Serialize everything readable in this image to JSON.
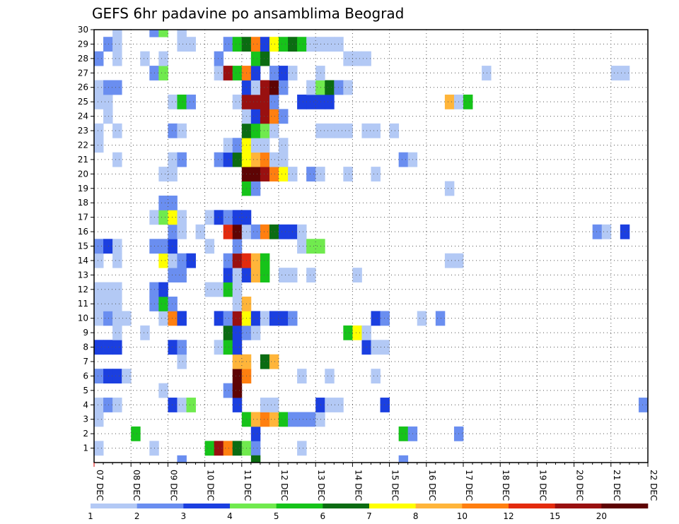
{
  "chart_data": {
    "type": "heatmap",
    "title": "GEFS 6hr padavine po ansamblima Beograd",
    "xlabel": "",
    "ylabel": "",
    "x_tick_labels": [
      "07 DEC",
      "08 DEC",
      "09 DEC",
      "10 DEC",
      "11 DEC",
      "12 DEC",
      "13 DEC",
      "14 DEC",
      "15 DEC",
      "16 DEC",
      "17 DEC",
      "18 DEC",
      "19 DEC",
      "20 DEC",
      "21 DEC",
      "22 DEC"
    ],
    "y_tick_labels": [
      "1",
      "2",
      "3",
      "4",
      "5",
      "6",
      "7",
      "8",
      "9",
      "10",
      "11",
      "12",
      "13",
      "14",
      "15",
      "16",
      "17",
      "18",
      "19",
      "20",
      "21",
      "22",
      "23",
      "24",
      "25",
      "26",
      "27",
      "28",
      "29",
      "30"
    ],
    "xlim": [
      "07 DEC",
      "22 DEC"
    ],
    "ylim": [
      0,
      30
    ],
    "time_steps": 60,
    "grid": "dotted",
    "legend": {
      "placement": "bottom",
      "boundary_labels": [
        "1",
        "2",
        "3",
        "4",
        "5",
        "6",
        "7",
        "8",
        "10",
        "12",
        "15",
        "20"
      ],
      "colors": [
        "#b3c9f5",
        "#6a8ef0",
        "#1b3fe0",
        "#70ea4e",
        "#16c31a",
        "#0b6c12",
        "#ffff00",
        "#ffb53a",
        "#ff7f10",
        "#e32b0e",
        "#991010",
        "#5e0404"
      ]
    },
    "cells": [
      [
        1,
        1,
        1
      ],
      [
        7,
        1,
        1
      ],
      [
        13,
        1,
        5
      ],
      [
        14,
        1,
        11
      ],
      [
        15,
        1,
        9
      ],
      [
        16,
        1,
        6
      ],
      [
        17,
        1,
        4
      ],
      [
        18,
        1,
        2
      ],
      [
        23,
        1,
        1
      ],
      [
        5,
        2,
        5
      ],
      [
        18,
        2,
        3
      ],
      [
        34,
        2,
        5
      ],
      [
        35,
        2,
        2
      ],
      [
        40,
        2,
        2
      ],
      [
        1,
        3,
        1
      ],
      [
        17,
        3,
        5
      ],
      [
        18,
        3,
        8
      ],
      [
        19,
        3,
        9
      ],
      [
        20,
        3,
        8
      ],
      [
        21,
        3,
        5
      ],
      [
        22,
        3,
        2
      ],
      [
        23,
        3,
        2
      ],
      [
        24,
        3,
        2
      ],
      [
        25,
        3,
        1
      ],
      [
        1,
        4,
        1
      ],
      [
        2,
        4,
        2
      ],
      [
        3,
        4,
        1
      ],
      [
        9,
        4,
        3
      ],
      [
        10,
        4,
        1
      ],
      [
        11,
        4,
        4
      ],
      [
        16,
        4,
        3
      ],
      [
        19,
        4,
        1
      ],
      [
        20,
        4,
        1
      ],
      [
        25,
        4,
        3
      ],
      [
        26,
        4,
        1
      ],
      [
        27,
        4,
        1
      ],
      [
        32,
        4,
        3
      ],
      [
        60,
        4,
        2
      ],
      [
        8,
        5,
        1
      ],
      [
        15,
        5,
        2
      ],
      [
        16,
        5,
        12
      ],
      [
        1,
        6,
        2
      ],
      [
        2,
        6,
        3
      ],
      [
        3,
        6,
        3
      ],
      [
        4,
        6,
        1
      ],
      [
        16,
        6,
        12
      ],
      [
        17,
        6,
        9
      ],
      [
        23,
        6,
        1
      ],
      [
        26,
        6,
        1
      ],
      [
        31,
        6,
        1
      ],
      [
        10,
        7,
        1
      ],
      [
        16,
        7,
        8
      ],
      [
        17,
        7,
        8
      ],
      [
        19,
        7,
        6
      ],
      [
        20,
        7,
        8
      ],
      [
        1,
        8,
        3
      ],
      [
        2,
        8,
        3
      ],
      [
        3,
        8,
        3
      ],
      [
        9,
        8,
        3
      ],
      [
        10,
        8,
        2
      ],
      [
        14,
        8,
        1
      ],
      [
        15,
        8,
        5
      ],
      [
        16,
        8,
        3
      ],
      [
        30,
        8,
        3
      ],
      [
        31,
        8,
        1
      ],
      [
        32,
        8,
        1
      ],
      [
        3,
        9,
        1
      ],
      [
        6,
        9,
        1
      ],
      [
        15,
        9,
        6
      ],
      [
        16,
        9,
        3
      ],
      [
        17,
        9,
        2
      ],
      [
        18,
        9,
        1
      ],
      [
        28,
        9,
        5
      ],
      [
        29,
        9,
        7
      ],
      [
        30,
        9,
        1
      ],
      [
        1,
        10,
        1
      ],
      [
        2,
        10,
        2
      ],
      [
        3,
        10,
        1
      ],
      [
        4,
        10,
        1
      ],
      [
        8,
        10,
        1
      ],
      [
        9,
        10,
        9
      ],
      [
        10,
        10,
        3
      ],
      [
        14,
        10,
        3
      ],
      [
        15,
        10,
        2
      ],
      [
        16,
        10,
        11
      ],
      [
        17,
        10,
        7
      ],
      [
        18,
        10,
        3
      ],
      [
        19,
        10,
        1
      ],
      [
        20,
        10,
        3
      ],
      [
        21,
        10,
        3
      ],
      [
        22,
        10,
        2
      ],
      [
        31,
        10,
        3
      ],
      [
        32,
        10,
        2
      ],
      [
        36,
        10,
        1
      ],
      [
        38,
        10,
        2
      ],
      [
        1,
        11,
        1
      ],
      [
        2,
        11,
        1
      ],
      [
        3,
        11,
        1
      ],
      [
        7,
        11,
        2
      ],
      [
        8,
        11,
        5
      ],
      [
        9,
        11,
        2
      ],
      [
        16,
        11,
        1
      ],
      [
        17,
        11,
        8
      ],
      [
        1,
        12,
        1
      ],
      [
        2,
        12,
        1
      ],
      [
        3,
        12,
        1
      ],
      [
        7,
        12,
        2
      ],
      [
        8,
        12,
        3
      ],
      [
        13,
        12,
        1
      ],
      [
        14,
        12,
        1
      ],
      [
        15,
        12,
        5
      ],
      [
        16,
        12,
        1
      ],
      [
        9,
        13,
        2
      ],
      [
        10,
        13,
        2
      ],
      [
        15,
        13,
        3
      ],
      [
        16,
        13,
        1
      ],
      [
        17,
        13,
        3
      ],
      [
        18,
        13,
        8
      ],
      [
        19,
        13,
        5
      ],
      [
        21,
        13,
        1
      ],
      [
        22,
        13,
        1
      ],
      [
        24,
        13,
        1
      ],
      [
        29,
        13,
        1
      ],
      [
        1,
        14,
        1
      ],
      [
        3,
        14,
        1
      ],
      [
        8,
        14,
        7
      ],
      [
        9,
        14,
        1
      ],
      [
        10,
        14,
        2
      ],
      [
        11,
        14,
        3
      ],
      [
        15,
        14,
        2
      ],
      [
        16,
        14,
        11
      ],
      [
        17,
        14,
        10
      ],
      [
        18,
        14,
        8
      ],
      [
        19,
        14,
        5
      ],
      [
        39,
        14,
        1
      ],
      [
        40,
        14,
        1
      ],
      [
        1,
        15,
        2
      ],
      [
        2,
        15,
        3
      ],
      [
        3,
        15,
        1
      ],
      [
        7,
        15,
        2
      ],
      [
        8,
        15,
        2
      ],
      [
        9,
        15,
        3
      ],
      [
        13,
        15,
        1
      ],
      [
        16,
        15,
        2
      ],
      [
        23,
        15,
        1
      ],
      [
        24,
        15,
        4
      ],
      [
        25,
        15,
        4
      ],
      [
        9,
        16,
        2
      ],
      [
        10,
        16,
        1
      ],
      [
        12,
        16,
        1
      ],
      [
        15,
        16,
        10
      ],
      [
        16,
        16,
        12
      ],
      [
        17,
        16,
        1
      ],
      [
        18,
        16,
        2
      ],
      [
        19,
        16,
        9
      ],
      [
        20,
        16,
        6
      ],
      [
        21,
        16,
        3
      ],
      [
        22,
        16,
        3
      ],
      [
        23,
        16,
        1
      ],
      [
        55,
        16,
        2
      ],
      [
        56,
        16,
        1
      ],
      [
        58,
        16,
        3
      ],
      [
        7,
        17,
        1
      ],
      [
        8,
        17,
        4
      ],
      [
        9,
        17,
        7
      ],
      [
        10,
        17,
        1
      ],
      [
        13,
        17,
        1
      ],
      [
        14,
        17,
        3
      ],
      [
        15,
        17,
        2
      ],
      [
        16,
        17,
        3
      ],
      [
        17,
        17,
        3
      ],
      [
        8,
        18,
        2
      ],
      [
        9,
        18,
        2
      ],
      [
        17,
        19,
        5
      ],
      [
        18,
        19,
        2
      ],
      [
        39,
        19,
        1
      ],
      [
        8,
        20,
        1
      ],
      [
        9,
        20,
        1
      ],
      [
        17,
        20,
        12
      ],
      [
        18,
        20,
        12
      ],
      [
        19,
        20,
        11
      ],
      [
        20,
        20,
        9
      ],
      [
        21,
        20,
        7
      ],
      [
        22,
        20,
        1
      ],
      [
        24,
        20,
        2
      ],
      [
        25,
        20,
        1
      ],
      [
        28,
        20,
        1
      ],
      [
        31,
        20,
        1
      ],
      [
        3,
        21,
        1
      ],
      [
        9,
        21,
        1
      ],
      [
        10,
        21,
        2
      ],
      [
        14,
        21,
        2
      ],
      [
        15,
        21,
        3
      ],
      [
        16,
        21,
        6
      ],
      [
        17,
        21,
        7
      ],
      [
        18,
        21,
        8
      ],
      [
        19,
        21,
        9
      ],
      [
        20,
        21,
        1
      ],
      [
        21,
        21,
        1
      ],
      [
        34,
        21,
        2
      ],
      [
        35,
        21,
        1
      ],
      [
        1,
        22,
        1
      ],
      [
        15,
        22,
        1
      ],
      [
        16,
        22,
        2
      ],
      [
        17,
        22,
        7
      ],
      [
        18,
        22,
        1
      ],
      [
        19,
        22,
        1
      ],
      [
        21,
        22,
        1
      ],
      [
        1,
        23,
        1
      ],
      [
        3,
        23,
        1
      ],
      [
        9,
        23,
        2
      ],
      [
        10,
        23,
        1
      ],
      [
        17,
        23,
        6
      ],
      [
        18,
        23,
        5
      ],
      [
        19,
        23,
        4
      ],
      [
        20,
        23,
        1
      ],
      [
        25,
        23,
        1
      ],
      [
        26,
        23,
        1
      ],
      [
        27,
        23,
        1
      ],
      [
        28,
        23,
        1
      ],
      [
        30,
        23,
        1
      ],
      [
        31,
        23,
        1
      ],
      [
        33,
        23,
        1
      ],
      [
        2,
        24,
        1
      ],
      [
        17,
        24,
        1
      ],
      [
        18,
        24,
        3
      ],
      [
        19,
        24,
        11
      ],
      [
        20,
        24,
        9
      ],
      [
        21,
        24,
        2
      ],
      [
        1,
        25,
        1
      ],
      [
        2,
        25,
        1
      ],
      [
        9,
        25,
        1
      ],
      [
        10,
        25,
        5
      ],
      [
        11,
        25,
        2
      ],
      [
        16,
        25,
        1
      ],
      [
        17,
        25,
        11
      ],
      [
        18,
        25,
        11
      ],
      [
        19,
        25,
        11
      ],
      [
        20,
        25,
        2
      ],
      [
        23,
        25,
        3
      ],
      [
        24,
        25,
        3
      ],
      [
        25,
        25,
        3
      ],
      [
        26,
        25,
        3
      ],
      [
        39,
        25,
        8
      ],
      [
        40,
        25,
        1
      ],
      [
        41,
        25,
        5
      ],
      [
        1,
        26,
        1
      ],
      [
        2,
        26,
        2
      ],
      [
        3,
        26,
        2
      ],
      [
        17,
        26,
        3
      ],
      [
        18,
        26,
        1
      ],
      [
        19,
        26,
        11
      ],
      [
        20,
        26,
        12
      ],
      [
        21,
        26,
        2
      ],
      [
        24,
        26,
        1
      ],
      [
        25,
        26,
        4
      ],
      [
        26,
        26,
        6
      ],
      [
        27,
        26,
        2
      ],
      [
        28,
        26,
        1
      ],
      [
        7,
        27,
        2
      ],
      [
        8,
        27,
        4
      ],
      [
        14,
        27,
        1
      ],
      [
        15,
        27,
        11
      ],
      [
        16,
        27,
        5
      ],
      [
        17,
        27,
        9
      ],
      [
        18,
        27,
        3
      ],
      [
        20,
        27,
        2
      ],
      [
        21,
        27,
        3
      ],
      [
        22,
        27,
        1
      ],
      [
        25,
        27,
        1
      ],
      [
        43,
        27,
        1
      ],
      [
        57,
        27,
        1
      ],
      [
        58,
        27,
        1
      ],
      [
        1,
        28,
        2
      ],
      [
        3,
        28,
        1
      ],
      [
        6,
        28,
        1
      ],
      [
        8,
        28,
        1
      ],
      [
        14,
        28,
        2
      ],
      [
        18,
        28,
        5
      ],
      [
        19,
        28,
        6
      ],
      [
        28,
        28,
        1
      ],
      [
        29,
        28,
        1
      ],
      [
        30,
        28,
        1
      ],
      [
        2,
        29,
        2
      ],
      [
        3,
        29,
        1
      ],
      [
        10,
        29,
        1
      ],
      [
        11,
        29,
        1
      ],
      [
        15,
        29,
        2
      ],
      [
        16,
        29,
        5
      ],
      [
        17,
        29,
        6
      ],
      [
        18,
        29,
        9
      ],
      [
        19,
        29,
        3
      ],
      [
        20,
        29,
        7
      ],
      [
        21,
        29,
        5
      ],
      [
        22,
        29,
        6
      ],
      [
        23,
        29,
        5
      ],
      [
        24,
        29,
        1
      ],
      [
        25,
        29,
        1
      ],
      [
        26,
        29,
        1
      ],
      [
        27,
        29,
        1
      ],
      [
        3,
        30,
        1
      ],
      [
        7,
        30,
        2
      ],
      [
        8,
        30,
        4
      ],
      [
        10,
        30,
        1
      ],
      [
        10,
        0,
        2
      ],
      [
        18,
        0,
        6
      ],
      [
        34,
        0,
        2
      ]
    ]
  }
}
